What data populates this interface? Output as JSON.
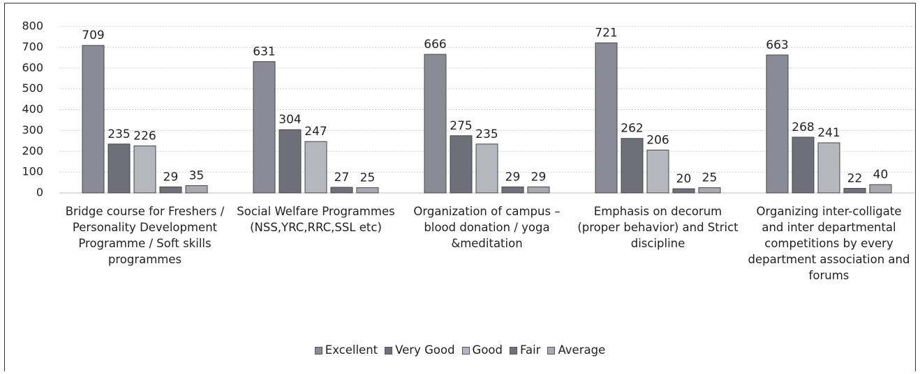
{
  "chart_data": {
    "type": "bar",
    "categories": [
      "Bridge course for Freshers / Personality Development Programme / Soft skills programmes",
      "Social Welfare Programmes (NSS,YRC,RRC,SSL etc)",
      "Organization of campus – blood donation / yoga &meditation",
      "Emphasis on decorum (proper behavior) and Strict discipline",
      "Organizing inter-colligate and inter departmental competitions by every department association and forums"
    ],
    "series": [
      {
        "name": "Excellent",
        "color": "#8b8b97",
        "values": [
          709,
          631,
          666,
          721,
          663
        ]
      },
      {
        "name": "Very Good",
        "color": "#6f6f79",
        "values": [
          235,
          304,
          275,
          262,
          268
        ]
      },
      {
        "name": "Good",
        "color": "#b6b6be",
        "values": [
          226,
          247,
          235,
          206,
          241
        ]
      },
      {
        "name": "Fair",
        "color": "#71717b",
        "values": [
          29,
          27,
          29,
          20,
          22
        ]
      },
      {
        "name": "Average",
        "color": "#a9a9b2",
        "values": [
          35,
          25,
          29,
          25,
          40
        ]
      }
    ],
    "ylim": [
      0,
      800
    ],
    "yticks": [
      0,
      100,
      200,
      300,
      400,
      500,
      600,
      700,
      800
    ],
    "grid": true,
    "legend": "bottom"
  }
}
